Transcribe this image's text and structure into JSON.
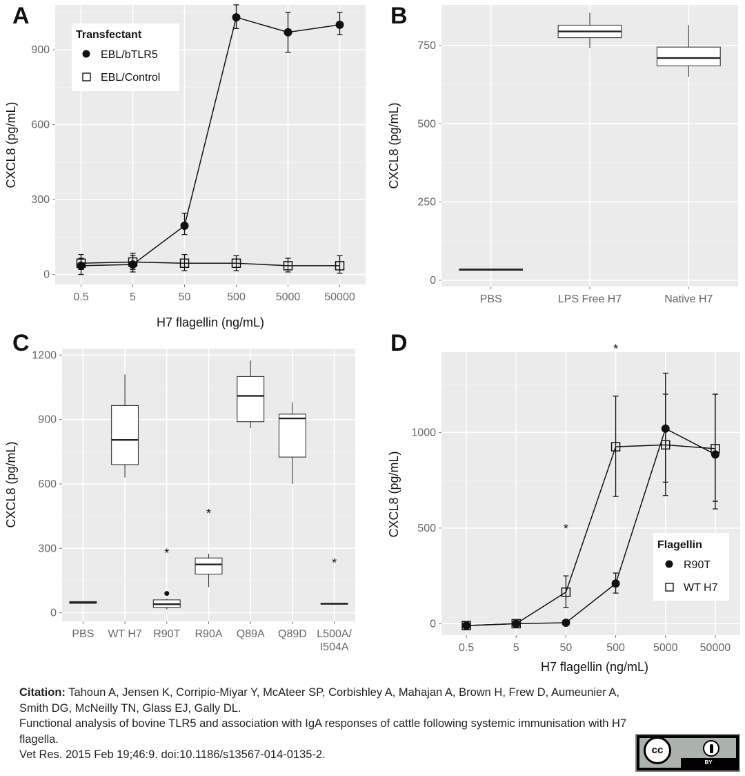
{
  "citation": {
    "label": "Citation:",
    "authors": "Tahoun A, Jensen K, Corripio-Miyar Y, McAteer SP, Corbishley A, Mahajan A, Brown H, Frew D, Aumeunier A, Smith DG, McNeilly TN, Glass EJ, Gally DL.",
    "title": "Functional analysis of bovine TLR5 and association with IgA responses of cattle following systemic immunisation with H7 flagella.",
    "journal": "Vet Res. 2015 Feb 19;46:9. doi:10.1186/s13567-014-0135-2."
  },
  "license": {
    "cc": "cc",
    "by": "BY"
  },
  "chart_data": [
    {
      "panel": "A",
      "type": "line",
      "xlabel": "H7 flagellin (ng/mL)",
      "ylabel": "CXCL8 (pg/mL)",
      "categories": [
        "0.5",
        "5",
        "50",
        "500",
        "5000",
        "50000"
      ],
      "ylim": [
        -40,
        1080
      ],
      "yticks": [
        0,
        300,
        600,
        900
      ],
      "legend": {
        "title": "Transfectant",
        "position": "top-left"
      },
      "series": [
        {
          "name": "EBL/bTLR5",
          "marker": "filled-circle",
          "values": [
            35,
            40,
            195,
            1030,
            970,
            1000
          ],
          "err_lo": [
            0,
            10,
            160,
            985,
            890,
            960
          ],
          "err_hi": [
            65,
            75,
            245,
            1080,
            1050,
            1050
          ]
        },
        {
          "name": "EBL/Control",
          "marker": "open-square",
          "values": [
            45,
            50,
            45,
            45,
            35,
            35
          ],
          "err_lo": [
            20,
            20,
            15,
            15,
            10,
            5
          ],
          "err_hi": [
            80,
            85,
            80,
            75,
            65,
            75
          ]
        }
      ]
    },
    {
      "panel": "B",
      "type": "box",
      "xlabel": "",
      "ylabel": "CXCL8 (pg/mL)",
      "categories": [
        "PBS",
        "LPS Free H7",
        "Native H7"
      ],
      "ylim": [
        -20,
        880
      ],
      "yticks": [
        0,
        250,
        500,
        750
      ],
      "boxes": [
        {
          "min": 32,
          "q1": 32,
          "median": 34,
          "q3": 36,
          "max": 36
        },
        {
          "min": 742,
          "q1": 775,
          "median": 795,
          "q3": 815,
          "max": 855
        },
        {
          "min": 650,
          "q1": 685,
          "median": 710,
          "q3": 745,
          "max": 815
        }
      ]
    },
    {
      "panel": "C",
      "type": "box",
      "xlabel": "",
      "ylabel": "CXCL8 (pg/mL)",
      "categories": [
        "PBS",
        "WT H7",
        "R90T",
        "R90A",
        "Q89A",
        "Q89D",
        "L500A/\nI504A"
      ],
      "ylim": [
        -40,
        1230
      ],
      "yticks": [
        0,
        300,
        600,
        900,
        1200
      ],
      "annotations": [
        "*",
        "*",
        "*"
      ],
      "boxes": [
        {
          "min": 42,
          "q1": 44,
          "median": 48,
          "q3": 52,
          "max": 54,
          "sig": false
        },
        {
          "min": 630,
          "q1": 690,
          "median": 805,
          "q3": 965,
          "max": 1110,
          "sig": false
        },
        {
          "min": 15,
          "q1": 25,
          "median": 40,
          "q3": 60,
          "max": 65,
          "outlier": 90,
          "sig": true
        },
        {
          "min": 120,
          "q1": 180,
          "median": 225,
          "q3": 255,
          "max": 275,
          "sig": true
        },
        {
          "min": 860,
          "q1": 890,
          "median": 1010,
          "q3": 1100,
          "max": 1175,
          "sig": false
        },
        {
          "min": 600,
          "q1": 725,
          "median": 905,
          "q3": 925,
          "max": 980,
          "sig": false
        },
        {
          "min": 38,
          "q1": 40,
          "median": 42,
          "q3": 44,
          "max": 46,
          "sig": true
        }
      ]
    },
    {
      "panel": "D",
      "type": "line",
      "xlabel": "H7 flagellin (ng/mL)",
      "ylabel": "CXCL8 (pg/mL)",
      "categories": [
        "0.5",
        "5",
        "50",
        "500",
        "5000",
        "50000"
      ],
      "ylim": [
        -60,
        1420
      ],
      "yticks": [
        0,
        500,
        1000
      ],
      "annotations": [
        "*",
        "*"
      ],
      "legend": {
        "title": "Flagellin",
        "position": "bottom-right"
      },
      "series": [
        {
          "name": "R90T",
          "marker": "filled-circle",
          "values": [
            -10,
            0,
            5,
            210,
            1020,
            885
          ],
          "err_lo": [
            -25,
            -10,
            -5,
            160,
            670,
            600
          ],
          "err_hi": [
            5,
            10,
            15,
            265,
            1310,
            1200
          ]
        },
        {
          "name": "WT H7",
          "marker": "open-square",
          "values": [
            -10,
            0,
            165,
            925,
            935,
            915
          ],
          "err_lo": [
            -25,
            -10,
            85,
            665,
            740,
            640
          ],
          "err_hi": [
            5,
            10,
            250,
            1190,
            1200,
            1200
          ]
        }
      ]
    }
  ]
}
